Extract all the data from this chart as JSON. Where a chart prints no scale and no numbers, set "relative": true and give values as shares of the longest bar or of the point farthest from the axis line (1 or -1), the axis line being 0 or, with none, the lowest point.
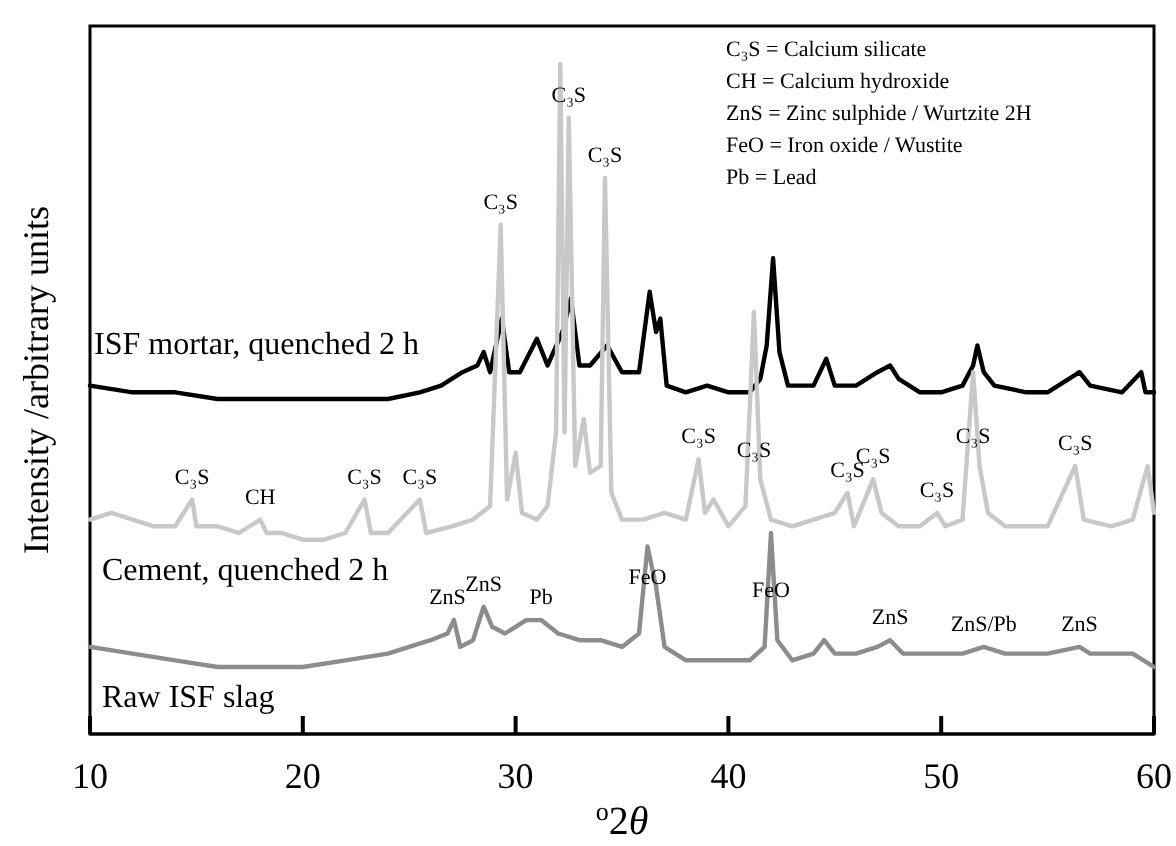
{
  "chart_data": {
    "type": "line",
    "relative": true,
    "xlabel": "$^{o}$2θ",
    "ylabel": "Intensity /arbitrary units",
    "xlim": [
      10,
      60
    ],
    "xticks": [
      10,
      20,
      30,
      40,
      50,
      60
    ],
    "grid": false,
    "series": [
      {
        "name": "ISF mortar, quenched 2 h",
        "color": "#000000",
        "x": [
          10,
          12,
          14,
          16,
          18,
          20,
          22,
          24,
          25.5,
          26.5,
          27,
          27.5,
          28.2,
          28.5,
          28.8,
          29.35,
          29.7,
          30.2,
          31,
          31.5,
          32.2,
          32.6,
          33,
          33.5,
          34.3,
          35,
          35.8,
          36.3,
          36.6,
          36.8,
          37.1,
          38,
          39,
          40,
          41,
          41.5,
          41.8,
          42.1,
          42.4,
          42.8,
          44,
          44.6,
          45,
          46,
          47,
          47.6,
          48,
          49,
          50,
          51,
          51.5,
          51.7,
          52,
          52.5,
          54,
          55,
          56.5,
          57,
          58.5,
          59.4,
          59.6,
          60
        ],
        "values": [
          0.52,
          0.51,
          0.51,
          0.5,
          0.5,
          0.5,
          0.5,
          0.5,
          0.51,
          0.52,
          0.53,
          0.54,
          0.55,
          0.57,
          0.54,
          0.62,
          0.54,
          0.54,
          0.59,
          0.55,
          0.6,
          0.65,
          0.55,
          0.55,
          0.58,
          0.54,
          0.54,
          0.66,
          0.6,
          0.62,
          0.52,
          0.51,
          0.52,
          0.51,
          0.51,
          0.53,
          0.58,
          0.71,
          0.57,
          0.52,
          0.52,
          0.56,
          0.52,
          0.52,
          0.54,
          0.55,
          0.53,
          0.51,
          0.51,
          0.52,
          0.55,
          0.58,
          0.54,
          0.52,
          0.51,
          0.51,
          0.54,
          0.52,
          0.51,
          0.54,
          0.51,
          0.51
        ]
      },
      {
        "name": "Cement, quenched 2 h",
        "color": "#c8c8c8",
        "x": [
          10,
          11,
          12,
          13,
          14,
          14.8,
          15,
          16,
          17,
          18,
          18.3,
          19,
          20,
          21,
          22,
          22.9,
          23.2,
          24,
          25.5,
          25.8,
          27,
          28,
          28.8,
          29.3,
          29.6,
          30,
          30.3,
          31,
          31.5,
          31.9,
          32.1,
          32.3,
          32.5,
          32.8,
          33.2,
          33.5,
          34,
          34.2,
          34.5,
          35,
          36,
          37,
          38,
          38.6,
          38.9,
          39.3,
          40,
          40.8,
          41.2,
          41.5,
          42,
          43,
          44,
          45,
          45.6,
          45.9,
          46.8,
          47.2,
          48,
          49,
          49.8,
          50.2,
          51,
          51.5,
          51.8,
          52.2,
          53,
          54,
          55,
          56.3,
          56.7,
          58,
          59,
          59.7,
          60
        ],
        "values": [
          0.32,
          0.33,
          0.32,
          0.31,
          0.31,
          0.35,
          0.31,
          0.31,
          0.3,
          0.32,
          0.3,
          0.3,
          0.29,
          0.29,
          0.3,
          0.35,
          0.3,
          0.3,
          0.35,
          0.3,
          0.31,
          0.32,
          0.34,
          0.76,
          0.35,
          0.42,
          0.33,
          0.32,
          0.34,
          0.45,
          1.0,
          0.45,
          0.92,
          0.4,
          0.47,
          0.39,
          0.4,
          0.83,
          0.36,
          0.32,
          0.32,
          0.33,
          0.32,
          0.41,
          0.33,
          0.35,
          0.31,
          0.34,
          0.63,
          0.38,
          0.32,
          0.31,
          0.32,
          0.33,
          0.36,
          0.31,
          0.38,
          0.33,
          0.31,
          0.31,
          0.33,
          0.31,
          0.32,
          0.54,
          0.4,
          0.33,
          0.31,
          0.31,
          0.31,
          0.4,
          0.32,
          0.31,
          0.32,
          0.4,
          0.33
        ]
      },
      {
        "name": "Raw ISF slag",
        "color": "#8c8c8c",
        "x": [
          10,
          12,
          14,
          16,
          18,
          20,
          22,
          24,
          25,
          26,
          26.8,
          27.1,
          27.4,
          28,
          28.5,
          28.9,
          29.5,
          30.5,
          31.2,
          32,
          33,
          34,
          35,
          35.8,
          36.2,
          36.6,
          37,
          38,
          39,
          40,
          41,
          41.7,
          42,
          42.3,
          43,
          44,
          44.5,
          45,
          46,
          47,
          47.6,
          48.2,
          50,
          51,
          52,
          53,
          55,
          56.5,
          57,
          59,
          60
        ],
        "values": [
          0.13,
          0.12,
          0.11,
          0.1,
          0.1,
          0.1,
          0.11,
          0.12,
          0.13,
          0.14,
          0.15,
          0.17,
          0.13,
          0.14,
          0.19,
          0.16,
          0.15,
          0.17,
          0.17,
          0.15,
          0.14,
          0.14,
          0.13,
          0.15,
          0.28,
          0.22,
          0.13,
          0.11,
          0.11,
          0.11,
          0.11,
          0.13,
          0.3,
          0.14,
          0.11,
          0.12,
          0.14,
          0.12,
          0.12,
          0.13,
          0.14,
          0.12,
          0.12,
          0.12,
          0.13,
          0.12,
          0.12,
          0.13,
          0.12,
          0.12,
          0.1
        ]
      }
    ],
    "annotations": [
      "C₃S = Calcium silicate",
      "CH = Calcium hydroxide",
      "ZnS = Zinc sulphide / Wurtzite 2H",
      "FeO = Iron oxide / Wustite",
      "Pb = Lead",
      {
        "text": "C₃S",
        "x": 14.8,
        "y": 0.35
      },
      {
        "text": "CH",
        "x": 18,
        "y": 0.32
      },
      {
        "text": "C₃S",
        "x": 22.9,
        "y": 0.35
      },
      {
        "text": "C₃S",
        "x": 25.5,
        "y": 0.35
      },
      {
        "text": "C₃S",
        "x": 29.3,
        "y": 0.76
      },
      {
        "text": "C₃S",
        "x": 32.5,
        "y": 0.92
      },
      {
        "text": "C₃S",
        "x": 34.2,
        "y": 0.83
      },
      {
        "text": "C₃S",
        "x": 38.6,
        "y": 0.41
      },
      {
        "text": "C₃S",
        "x": 41.2,
        "y": 0.39
      },
      {
        "text": "C₃S",
        "x": 45.6,
        "y": 0.36
      },
      {
        "text": "C₃S",
        "x": 46.8,
        "y": 0.38
      },
      {
        "text": "C₃S",
        "x": 49.8,
        "y": 0.33
      },
      {
        "text": "C₃S",
        "x": 51.5,
        "y": 0.41
      },
      {
        "text": "C₃S",
        "x": 56.3,
        "y": 0.4
      },
      {
        "text": "ZnS",
        "x": 26.8,
        "y": 0.17
      },
      {
        "text": "ZnS",
        "x": 28.5,
        "y": 0.19
      },
      {
        "text": "Pb",
        "x": 31.2,
        "y": 0.17
      },
      {
        "text": "FeO",
        "x": 36.2,
        "y": 0.2
      },
      {
        "text": "FeO",
        "x": 42,
        "y": 0.18
      },
      {
        "text": "ZnS",
        "x": 47.6,
        "y": 0.14
      },
      {
        "text": "ZnS/Pb",
        "x": 52,
        "y": 0.13
      },
      {
        "text": "ZnS",
        "x": 56.5,
        "y": 0.13
      }
    ]
  }
}
